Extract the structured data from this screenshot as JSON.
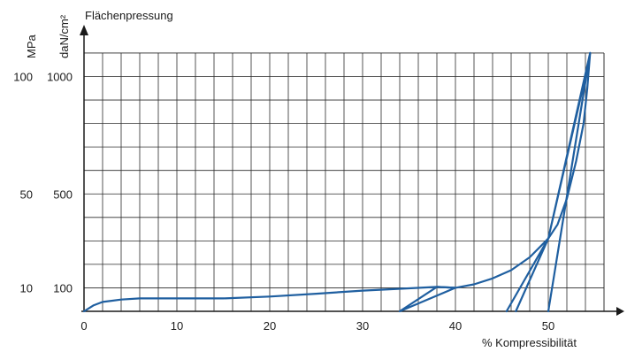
{
  "chart_data": {
    "type": "line",
    "title": "Flächenpressung",
    "xlabel": "% Kompressibilität",
    "ylabel_primary": "daN/cm²",
    "ylabel_secondary": "MPa",
    "xlim": [
      0,
      56
    ],
    "ylim": [
      0,
      1100
    ],
    "x_ticks": [
      0,
      10,
      20,
      30,
      40,
      50
    ],
    "y_ticks_primary": [
      {
        "value": 100,
        "label": "100"
      },
      {
        "value": 500,
        "label": "500"
      },
      {
        "value": 1000,
        "label": "1000"
      }
    ],
    "y_ticks_secondary": [
      {
        "value": 100,
        "label": "10"
      },
      {
        "value": 500,
        "label": "50"
      },
      {
        "value": 1000,
        "label": "100"
      }
    ],
    "grid": true,
    "color": "#1f5fa0",
    "series": [
      {
        "points": [
          [
            0,
            0
          ],
          [
            1,
            25
          ],
          [
            2,
            40
          ],
          [
            4,
            50
          ],
          [
            6,
            55
          ],
          [
            10,
            55
          ],
          [
            15,
            55
          ],
          [
            20,
            63
          ],
          [
            25,
            75
          ],
          [
            30,
            88
          ],
          [
            35,
            98
          ],
          [
            38,
            104
          ],
          [
            40,
            100
          ],
          [
            42,
            115
          ],
          [
            44,
            140
          ],
          [
            46,
            175
          ],
          [
            48,
            230
          ],
          [
            50,
            310
          ],
          [
            51,
            370
          ],
          [
            52,
            480
          ],
          [
            53,
            640
          ],
          [
            53.8,
            800
          ],
          [
            54.2,
            950
          ],
          [
            54.5,
            1100
          ]
        ]
      },
      {
        "points": [
          [
            34,
            0
          ],
          [
            40,
            100
          ],
          [
            38,
            104
          ],
          [
            34,
            0
          ]
        ]
      },
      {
        "points": [
          [
            45.5,
            0
          ],
          [
            50,
            310
          ],
          [
            46.5,
            0
          ]
        ]
      },
      {
        "points": [
          [
            50,
            0
          ],
          [
            54.5,
            1100
          ],
          [
            50,
            310
          ],
          [
            54.3,
            1050
          ],
          [
            50,
            0
          ]
        ]
      }
    ]
  }
}
